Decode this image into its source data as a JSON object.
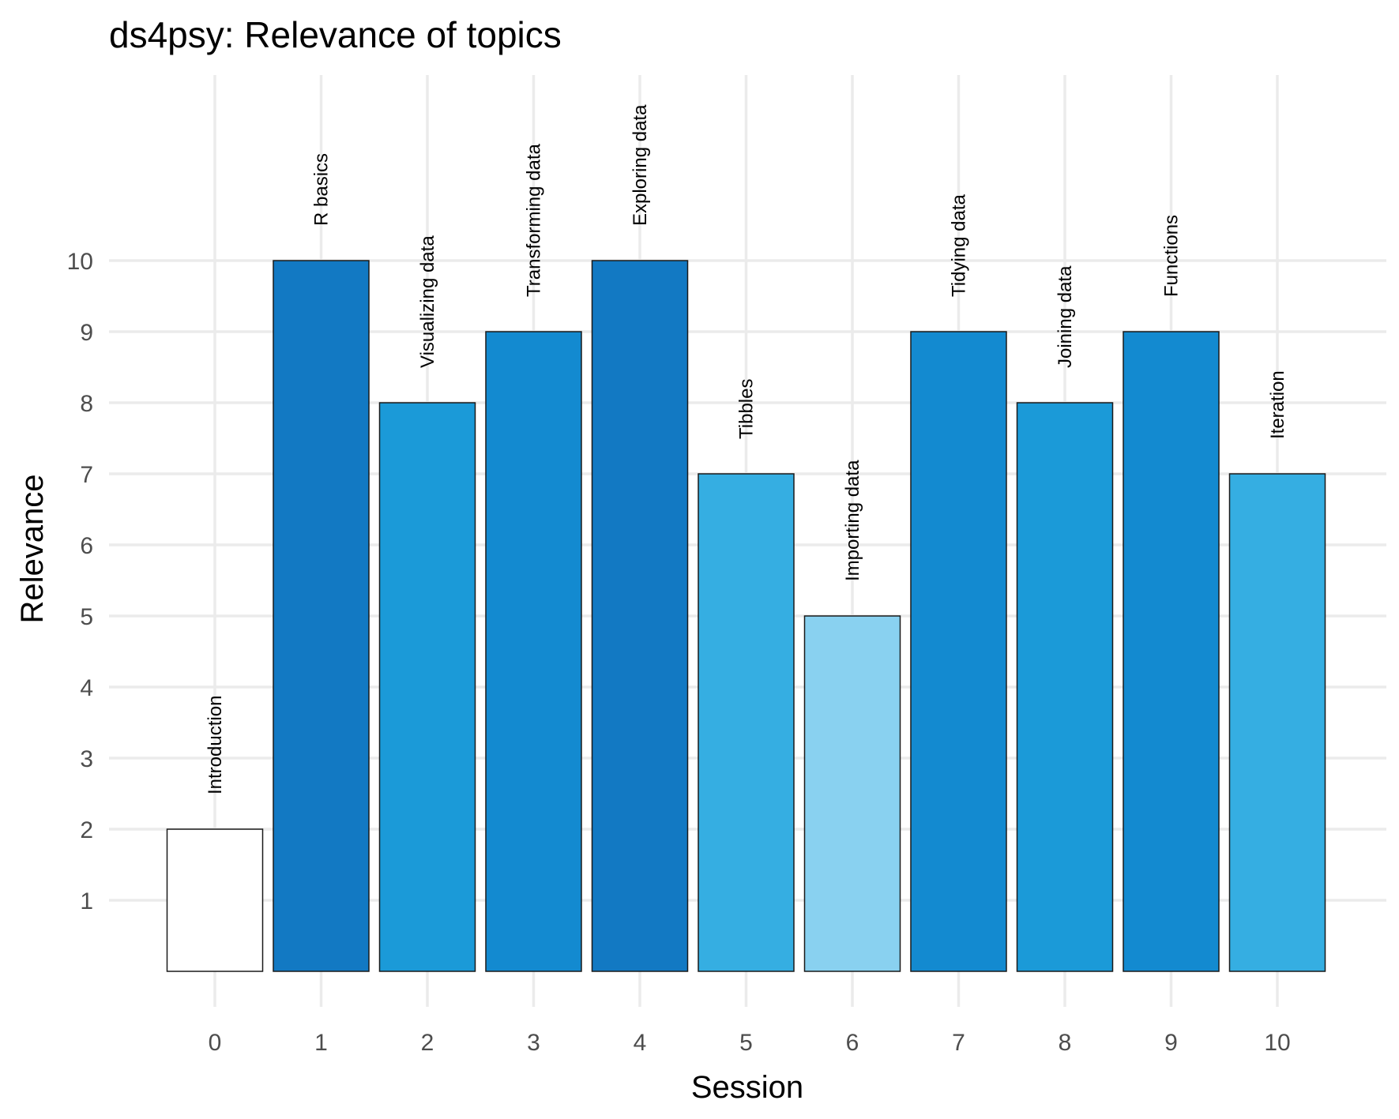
{
  "chart_data": {
    "type": "bar",
    "title": "ds4psy: Relevance of topics",
    "xlabel": "Session",
    "ylabel": "Relevance",
    "categories": [
      "0",
      "1",
      "2",
      "3",
      "4",
      "5",
      "6",
      "7",
      "8",
      "9",
      "10"
    ],
    "values": [
      2,
      10,
      8,
      9,
      10,
      7,
      5,
      9,
      8,
      9,
      7
    ],
    "labels": [
      "Introduction",
      "R basics",
      "Visualizing data",
      "Transforming data",
      "Exploring data",
      "Tibbles",
      "Importing data",
      "Tidying data",
      "Joining data",
      "Functions",
      "Iteration"
    ],
    "yticks": [
      1,
      2,
      3,
      4,
      5,
      6,
      7,
      8,
      9,
      10
    ],
    "ylim": [
      0,
      12.5
    ],
    "grid": true,
    "legend": "none",
    "fill_scale": {
      "2": "#ffffff",
      "5": "#89d1f0",
      "7": "#35aee2",
      "8": "#1b9ad8",
      "9": "#138ad0",
      "10": "#1279c3"
    }
  }
}
